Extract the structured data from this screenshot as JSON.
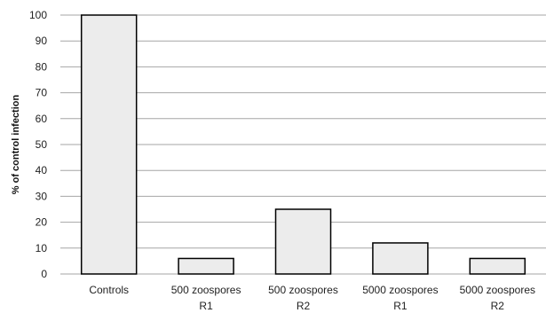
{
  "chart_data": {
    "type": "bar",
    "title": "",
    "xlabel": "",
    "ylabel": "% of control infection",
    "ylim": [
      0,
      100
    ],
    "yticks": [
      0,
      10,
      20,
      30,
      40,
      50,
      60,
      70,
      80,
      90,
      100
    ],
    "grid": true,
    "categories": [
      [
        "Controls"
      ],
      [
        "500 zoospores",
        "R1"
      ],
      [
        "500 zoospores",
        "R2"
      ],
      [
        "5000 zoospores",
        "R1"
      ],
      [
        "5000 zoospores",
        "R2"
      ]
    ],
    "values": [
      100,
      6,
      25,
      12,
      6
    ],
    "colors": {
      "bar_fill": "#ececec",
      "bar_stroke": "#000000",
      "grid": "#a6a6a6"
    }
  }
}
